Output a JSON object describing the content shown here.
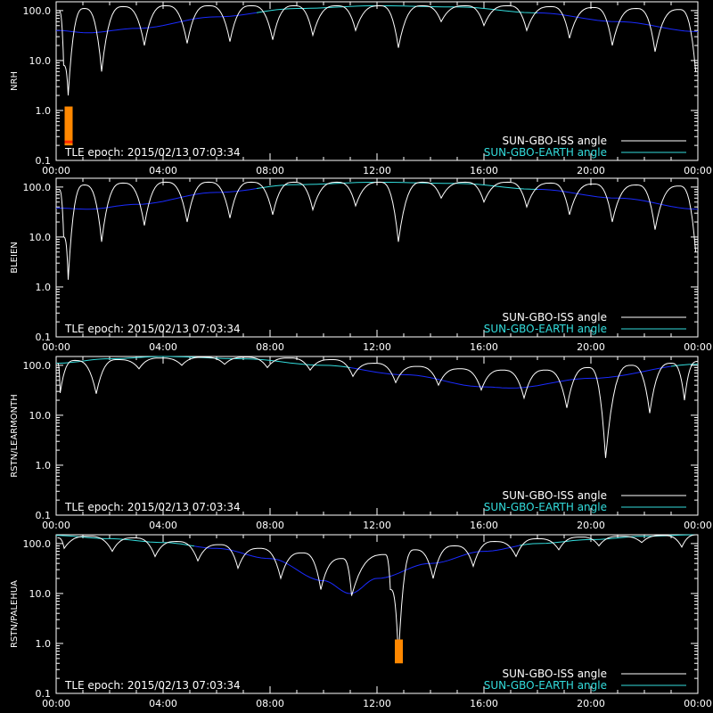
{
  "chart_data": [
    {
      "type": "line",
      "ylabel": "NRH",
      "yscale": "log",
      "ylim": [
        0.1,
        150
      ],
      "xlim": [
        0,
        24
      ],
      "xticks": [
        "00:00",
        "04:00",
        "08:00",
        "12:00",
        "16:00",
        "20:00",
        "00:00"
      ],
      "yticks": [
        "0.1",
        "1.0",
        "10.0",
        "100.0"
      ],
      "annotation": "TLE epoch: 2015/02/13 07:03:34",
      "legend": [
        "SUN-GBO-ISS angle",
        "SUN-GBO-EARTH angle"
      ],
      "legend_placement": "bottom-right",
      "series": [
        {
          "name": "SUN-GBO-ISS angle",
          "color": "#ffffff",
          "minima": [
            [
              0.28,
              8
            ],
            [
              0.45,
              2
            ],
            [
              1.7,
              6
            ],
            [
              3.3,
              20
            ],
            [
              4.9,
              22
            ],
            [
              6.5,
              24
            ],
            [
              8.1,
              26
            ],
            [
              9.6,
              32
            ],
            [
              11.2,
              40
            ],
            [
              12.8,
              18
            ],
            [
              14.4,
              60
            ],
            [
              16.0,
              50
            ],
            [
              17.6,
              40
            ],
            [
              19.2,
              28
            ],
            [
              20.8,
              20
            ],
            [
              22.4,
              15
            ],
            [
              23.92,
              6
            ]
          ],
          "peaks": [
            [
              0.1,
              100
            ],
            [
              1.05,
              110
            ],
            [
              2.5,
              120
            ],
            [
              4.1,
              125
            ],
            [
              5.7,
              125
            ],
            [
              7.3,
              125
            ],
            [
              8.9,
              125
            ],
            [
              10.5,
              125
            ],
            [
              12.1,
              125
            ],
            [
              13.7,
              125
            ],
            [
              15.3,
              125
            ],
            [
              16.9,
              125
            ],
            [
              18.5,
              120
            ],
            [
              20.1,
              115
            ],
            [
              21.7,
              110
            ],
            [
              23.3,
              105
            ]
          ]
        },
        {
          "name": "SUN-GBO-EARTH angle",
          "points": [
            [
              0,
              40
            ],
            [
              1.2,
              36
            ],
            [
              3,
              44
            ],
            [
              6,
              75
            ],
            [
              9,
              110
            ],
            [
              12,
              125
            ],
            [
              15,
              118
            ],
            [
              18,
              90
            ],
            [
              21,
              60
            ],
            [
              24,
              38
            ]
          ]
        }
      ],
      "markers": [
        {
          "x": 0.45,
          "ylim": [
            0.2,
            1.2
          ]
        }
      ]
    },
    {
      "type": "line",
      "ylabel": "BLEIEN",
      "yscale": "log",
      "ylim": [
        0.1,
        150
      ],
      "xlim": [
        0,
        24
      ],
      "xticks": [
        "00:00",
        "04:00",
        "08:00",
        "12:00",
        "16:00",
        "20:00",
        "00:00"
      ],
      "yticks": [
        "0.1",
        "1.0",
        "10.0",
        "100.0"
      ],
      "annotation": "TLE epoch: 2015/02/13 07:03:34",
      "legend": [
        "SUN-GBO-ISS angle",
        "SUN-GBO-EARTH angle"
      ],
      "legend_placement": "bottom-right",
      "series": [
        {
          "name": "SUN-GBO-ISS angle",
          "minima": [
            [
              0.28,
              10
            ],
            [
              0.45,
              1.4
            ],
            [
              1.7,
              8
            ],
            [
              3.3,
              17
            ],
            [
              4.9,
              20
            ],
            [
              6.5,
              24
            ],
            [
              8.1,
              28
            ],
            [
              9.6,
              35
            ],
            [
              11.2,
              42
            ],
            [
              12.8,
              8
            ],
            [
              14.4,
              60
            ],
            [
              16.0,
              50
            ],
            [
              17.6,
              40
            ],
            [
              19.2,
              28
            ],
            [
              20.8,
              20
            ],
            [
              22.4,
              14
            ],
            [
              23.92,
              5
            ]
          ],
          "peaks": [
            [
              0.1,
              90
            ],
            [
              1.05,
              110
            ],
            [
              2.5,
              120
            ],
            [
              4.1,
              125
            ],
            [
              5.7,
              125
            ],
            [
              7.3,
              125
            ],
            [
              8.9,
              125
            ],
            [
              10.5,
              125
            ],
            [
              12.1,
              125
            ],
            [
              13.7,
              125
            ],
            [
              15.3,
              125
            ],
            [
              16.9,
              125
            ],
            [
              18.5,
              120
            ],
            [
              20.1,
              115
            ],
            [
              21.7,
              110
            ],
            [
              23.3,
              105
            ]
          ]
        },
        {
          "name": "SUN-GBO-EARTH angle",
          "points": [
            [
              0,
              38
            ],
            [
              1.2,
              36
            ],
            [
              3,
              45
            ],
            [
              6,
              78
            ],
            [
              9,
              112
            ],
            [
              12,
              125
            ],
            [
              15,
              118
            ],
            [
              18,
              90
            ],
            [
              21,
              60
            ],
            [
              24,
              36
            ]
          ]
        }
      ],
      "markers": []
    },
    {
      "type": "line",
      "ylabel": "RSTN/LEARMONTH",
      "yscale": "log",
      "ylim": [
        0.1,
        150
      ],
      "xlim": [
        0,
        24
      ],
      "xticks": [
        "00:00",
        "04:00",
        "08:00",
        "12:00",
        "16:00",
        "20:00",
        "00:00"
      ],
      "yticks": [
        "0.1",
        "1.0",
        "10.0",
        "100.0"
      ],
      "annotation": "TLE epoch: 2015/02/13 07:03:34",
      "legend": [
        "SUN-GBO-ISS angle",
        "SUN-GBO-EARTH angle"
      ],
      "legend_placement": "bottom-right",
      "series": [
        {
          "name": "SUN-GBO-ISS angle",
          "minima": [
            [
              0.15,
              28
            ],
            [
              1.5,
              27
            ],
            [
              3.1,
              85
            ],
            [
              4.7,
              100
            ],
            [
              6.3,
              105
            ],
            [
              7.9,
              90
            ],
            [
              9.5,
              80
            ],
            [
              11.1,
              60
            ],
            [
              12.7,
              45
            ],
            [
              14.3,
              40
            ],
            [
              15.9,
              32
            ],
            [
              17.5,
              22
            ],
            [
              19.1,
              14
            ],
            [
              20.55,
              1.4
            ],
            [
              22.2,
              11
            ],
            [
              23.5,
              20
            ]
          ],
          "peaks": [
            [
              0.05,
              110
            ],
            [
              0.7,
              125
            ],
            [
              2.3,
              130
            ],
            [
              3.9,
              140
            ],
            [
              5.5,
              145
            ],
            [
              7.1,
              145
            ],
            [
              8.7,
              140
            ],
            [
              10.3,
              130
            ],
            [
              11.9,
              110
            ],
            [
              13.5,
              95
            ],
            [
              15.1,
              85
            ],
            [
              16.7,
              80
            ],
            [
              18.3,
              80
            ],
            [
              19.9,
              90
            ],
            [
              21.5,
              100
            ],
            [
              23.0,
              110
            ],
            [
              24,
              120
            ]
          ]
        },
        {
          "name": "SUN-GBO-EARTH angle",
          "points": [
            [
              0,
              110
            ],
            [
              2,
              135
            ],
            [
              4,
              150
            ],
            [
              7,
              135
            ],
            [
              10,
              100
            ],
            [
              13,
              65
            ],
            [
              16,
              37
            ],
            [
              17,
              35
            ],
            [
              20,
              55
            ],
            [
              24,
              105
            ]
          ]
        }
      ],
      "markers": []
    },
    {
      "type": "line",
      "ylabel": "RSTN/PALEHUA",
      "yscale": "log",
      "ylim": [
        0.1,
        150
      ],
      "xlim": [
        0,
        24
      ],
      "xticks": [
        "00:00",
        "04:00",
        "08:00",
        "12:00",
        "16:00",
        "20:00",
        "00:00"
      ],
      "yticks": [
        "0.1",
        "1.0",
        "10.0",
        "100.0"
      ],
      "annotation": "TLE epoch: 2015/02/13 07:03:34",
      "legend": [
        "SUN-GBO-ISS angle",
        "SUN-GBO-EARTH angle"
      ],
      "legend_placement": "bottom-right",
      "series": [
        {
          "name": "SUN-GBO-ISS angle",
          "minima": [
            [
              0.3,
              80
            ],
            [
              2.1,
              70
            ],
            [
              3.7,
              55
            ],
            [
              5.3,
              45
            ],
            [
              6.8,
              32
            ],
            [
              8.4,
              20
            ],
            [
              9.9,
              12
            ],
            [
              11.05,
              9
            ],
            [
              12.5,
              12
            ],
            [
              12.8,
              0.5
            ],
            [
              14.1,
              20
            ],
            [
              15.6,
              35
            ],
            [
              17.2,
              55
            ],
            [
              18.8,
              75
            ],
            [
              20.3,
              90
            ],
            [
              21.9,
              105
            ],
            [
              23.4,
              85
            ]
          ],
          "peaks": [
            [
              0.05,
              130
            ],
            [
              1.2,
              140
            ],
            [
              2.9,
              130
            ],
            [
              4.5,
              110
            ],
            [
              6.1,
              95
            ],
            [
              7.6,
              80
            ],
            [
              9.2,
              65
            ],
            [
              10.7,
              50
            ],
            [
              12.3,
              60
            ],
            [
              13.4,
              75
            ],
            [
              14.9,
              90
            ],
            [
              16.4,
              110
            ],
            [
              18.0,
              125
            ],
            [
              19.6,
              135
            ],
            [
              21.1,
              140
            ],
            [
              22.7,
              145
            ],
            [
              24,
              150
            ]
          ]
        },
        {
          "name": "SUN-GBO-EARTH angle",
          "points": [
            [
              0,
              145
            ],
            [
              2,
              125
            ],
            [
              4,
              105
            ],
            [
              6,
              80
            ],
            [
              8,
              50
            ],
            [
              10,
              18
            ],
            [
              11,
              10
            ],
            [
              12,
              20
            ],
            [
              14,
              40
            ],
            [
              16,
              70
            ],
            [
              18,
              100
            ],
            [
              20,
              120
            ],
            [
              22,
              140
            ],
            [
              24,
              150
            ]
          ]
        }
      ],
      "markers": [
        {
          "x": 12.8,
          "ylim": [
            0.4,
            1.2
          ]
        }
      ]
    }
  ]
}
